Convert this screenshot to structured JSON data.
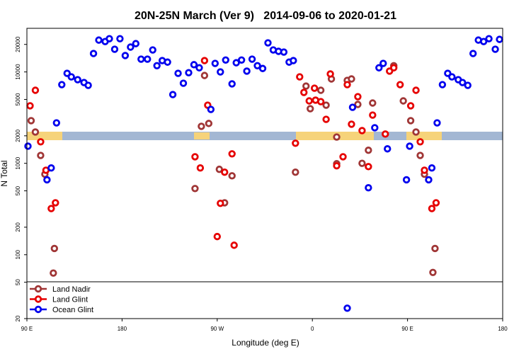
{
  "chart_data": {
    "type": "scatter",
    "title": "20N-25N March (Ver 9)   2014-09-06 to 2020-01-21",
    "xlabel": "Longitude (deg E)",
    "ylabel": "N Total",
    "xlim": [
      90,
      540
    ],
    "xticks": [
      {
        "value": 90,
        "label": "90 E"
      },
      180,
      {
        "value": 270,
        "label": "90 W"
      },
      {
        "value": 360,
        "label": "0"
      },
      {
        "value": 450,
        "label": "90 E"
      },
      {
        "value": 540,
        "label": "180"
      }
    ],
    "ylim": [
      20,
      30000
    ],
    "yscale": "log",
    "yticks": [
      20,
      50,
      100,
      200,
      500,
      1000,
      2000,
      5000,
      10000,
      20000
    ],
    "legend": "bottom-left",
    "series": [
      {
        "name": "Land Nadir",
        "color": "#a03636",
        "x": [
          94,
          98,
          103,
          107,
          116,
          115,
          258,
          255,
          262,
          272,
          277,
          284,
          249,
          344,
          354,
          358,
          368,
          373,
          378,
          383,
          383,
          393,
          397,
          403,
          407,
          413,
          417,
          437,
          446,
          453,
          458,
          462,
          466,
          474,
          476
        ],
        "values": [
          2930,
          2200,
          1220,
          760,
          117,
          63,
          9140,
          2540,
          2730,
          860,
          370,
          730,
          530,
          800,
          7000,
          3960,
          6300,
          4330,
          8380,
          1940,
          990,
          8080,
          8380,
          4410,
          1000,
          1390,
          4570,
          11700,
          4820,
          2930,
          2200,
          1220,
          760,
          64,
          117
        ]
      },
      {
        "name": "Land Glint",
        "color": "#e60000",
        "x": [
          93,
          98,
          103,
          108,
          113,
          117,
          258,
          261,
          249,
          254,
          270,
          273,
          277,
          284,
          286,
          344,
          348,
          352,
          357,
          362,
          363,
          368,
          373,
          377,
          383,
          389,
          393,
          397,
          403,
          407,
          413,
          417,
          429,
          433,
          437,
          443,
          453,
          458,
          462,
          466,
          473,
          477
        ],
        "values": [
          4260,
          6300,
          1720,
          840,
          320,
          370,
          13300,
          4330,
          1180,
          890,
          158,
          365,
          800,
          1270,
          127,
          1660,
          8830,
          5970,
          4820,
          6640,
          4910,
          4730,
          3030,
          9500,
          940,
          1180,
          7260,
          2680,
          5360,
          2280,
          920,
          3370,
          2090,
          10200,
          11100,
          7260,
          4260,
          6300,
          1720,
          840,
          320,
          370
        ]
      },
      {
        "name": "Ocean Glint",
        "color": "#0000ee",
        "x": [
          91,
          113,
          109,
          118,
          123,
          128,
          132,
          138,
          144,
          148,
          153,
          158,
          164,
          168,
          173,
          178,
          183,
          188,
          193,
          198,
          204,
          209,
          213,
          218,
          223,
          228,
          233,
          238,
          243,
          248,
          253,
          264,
          268,
          273,
          278,
          284,
          288,
          293,
          298,
          303,
          308,
          313,
          318,
          323,
          328,
          333,
          338,
          342,
          393,
          398,
          413,
          419,
          423,
          427,
          431,
          449,
          452,
          473,
          470,
          478,
          483,
          488,
          492,
          498,
          502,
          507,
          512,
          517,
          522,
          527,
          533,
          537
        ],
        "values": [
          1540,
          890,
          660,
          2770,
          7260,
          9650,
          8830,
          8220,
          7660,
          7130,
          15900,
          22300,
          21500,
          23100,
          17700,
          23100,
          15100,
          18700,
          20400,
          13800,
          13800,
          17400,
          11700,
          13300,
          12800,
          5650,
          9650,
          7520,
          9800,
          12000,
          11100,
          3890,
          12400,
          10000,
          13500,
          7400,
          12600,
          13500,
          10200,
          13800,
          11700,
          10900,
          20800,
          17400,
          16800,
          16500,
          12800,
          13300,
          26,
          4100,
          540,
          2450,
          11100,
          12400,
          1440,
          660,
          1540,
          890,
          660,
          2770,
          7260,
          9650,
          8830,
          8220,
          7660,
          7130,
          15900,
          22300,
          21500,
          23100,
          17700,
          22700
        ]
      }
    ]
  }
}
